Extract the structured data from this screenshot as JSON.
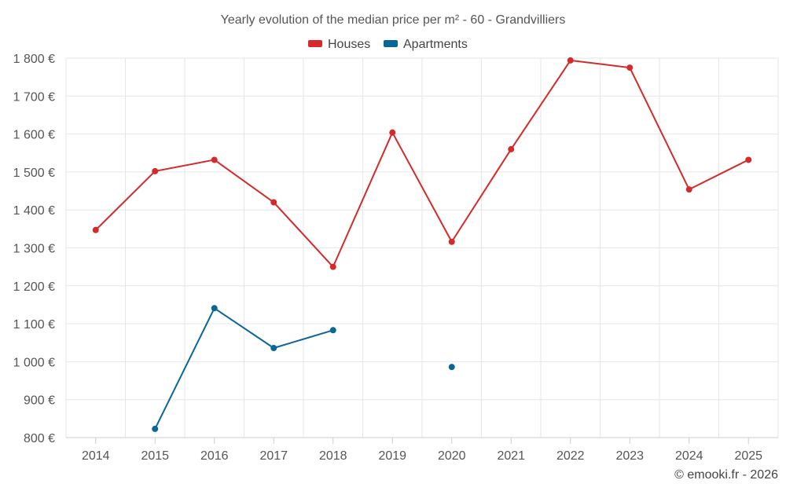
{
  "chart_data": {
    "type": "line",
    "title": "Yearly evolution of the median price per m² - 60 - Grandvilliers",
    "categories": [
      "2014",
      "2015",
      "2016",
      "2017",
      "2018",
      "2019",
      "2020",
      "2021",
      "2022",
      "2023",
      "2024",
      "2025"
    ],
    "ylim": [
      800,
      1800
    ],
    "yticks": [
      800,
      900,
      1000,
      1100,
      1200,
      1300,
      1400,
      1500,
      1600,
      1700,
      1800
    ],
    "ytick_labels": [
      "800 €",
      "900 €",
      "1 000 €",
      "1 100 €",
      "1 200 €",
      "1 300 €",
      "1 400 €",
      "1 500 €",
      "1 600 €",
      "1 700 €",
      "1 800 €"
    ],
    "legend_position": "top-center",
    "grid": true,
    "series": [
      {
        "name": "Houses",
        "color": "#d42a2a",
        "values": [
          1347,
          1502,
          1532,
          1420,
          1250,
          1604,
          1316,
          1560,
          1794,
          1775,
          1454,
          1532
        ]
      },
      {
        "name": "Apartments",
        "color": "#0b6698",
        "values": [
          null,
          823,
          1141,
          1036,
          1083,
          null,
          986,
          null,
          null,
          null,
          null,
          null
        ]
      }
    ]
  },
  "credit": "© emooki.fr - 2026"
}
